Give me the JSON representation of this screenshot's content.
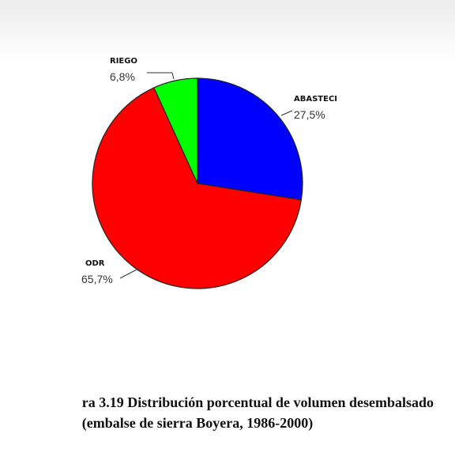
{
  "chart_data": {
    "type": "pie",
    "title": "ra 3.19 Distribución porcentual de volumen desembalsado",
    "subtitle": "(embalse de sierra Boyera, 1986-2000)",
    "categories": [
      "ABASTECI",
      "ODR",
      "RIEGO"
    ],
    "values": [
      27.5,
      65.7,
      6.8
    ],
    "value_labels": [
      "27,5%",
      "65,7%",
      "6,8%"
    ],
    "colors": [
      "#0000ff",
      "#ff0000",
      "#00ff00"
    ]
  }
}
